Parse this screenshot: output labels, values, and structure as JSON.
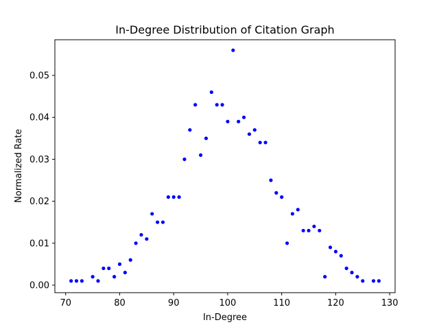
{
  "chart_data": {
    "type": "scatter",
    "title": "In-Degree Distribution of Citation Graph",
    "xlabel": "In-Degree",
    "ylabel": "Normalized Rate",
    "xlim": [
      68,
      131
    ],
    "ylim": [
      -0.0018,
      0.0585
    ],
    "xticks": [
      70,
      80,
      90,
      100,
      110,
      120,
      130
    ],
    "yticks": [
      0.0,
      0.01,
      0.02,
      0.03,
      0.04,
      0.05
    ],
    "xtick_labels": [
      "70",
      "80",
      "90",
      "100",
      "110",
      "120",
      "130"
    ],
    "ytick_labels": [
      "0.00",
      "0.01",
      "0.02",
      "0.03",
      "0.04",
      "0.05"
    ],
    "grid": false,
    "legend": "none",
    "marker_color": "#0000ff",
    "series": [
      {
        "x": [
          71,
          72,
          73,
          75,
          76,
          77,
          78,
          79,
          80,
          81,
          82,
          83,
          84,
          85,
          86,
          87,
          88,
          89,
          90,
          91,
          92,
          93,
          94,
          95,
          96,
          97,
          98,
          99,
          100,
          101,
          102,
          103,
          104,
          105,
          106,
          107,
          108,
          109,
          110,
          111,
          112,
          113,
          114,
          115,
          116,
          117,
          118,
          119,
          120,
          121,
          122,
          123,
          124,
          125,
          127,
          128
        ],
        "y": [
          0.001,
          0.001,
          0.001,
          0.002,
          0.001,
          0.004,
          0.004,
          0.002,
          0.005,
          0.003,
          0.006,
          0.01,
          0.012,
          0.011,
          0.017,
          0.015,
          0.015,
          0.021,
          0.021,
          0.021,
          0.03,
          0.037,
          0.043,
          0.031,
          0.035,
          0.046,
          0.043,
          0.043,
          0.039,
          0.056,
          0.039,
          0.04,
          0.036,
          0.037,
          0.034,
          0.034,
          0.025,
          0.022,
          0.021,
          0.01,
          0.017,
          0.018,
          0.013,
          0.013,
          0.014,
          0.013,
          0.002,
          0.009,
          0.008,
          0.007,
          0.004,
          0.003,
          0.002,
          0.001,
          0.001,
          0.001
        ]
      }
    ]
  }
}
